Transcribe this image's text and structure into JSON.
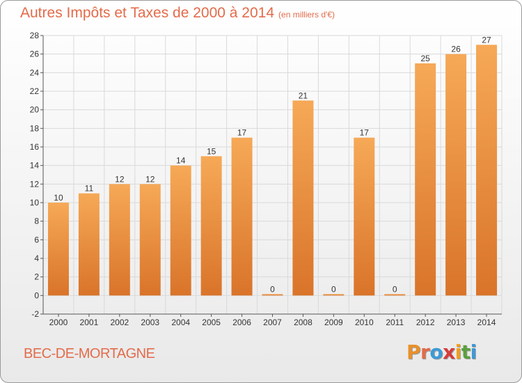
{
  "header": {
    "title": "Autres Impôts et Taxes de 2000 à 2014",
    "unit": "(en milliers d'€)"
  },
  "footer": {
    "commune": "BEC-DE-MORTAGNE",
    "logo": [
      "P",
      "r",
      "o",
      "x",
      "i",
      "t",
      "i"
    ],
    "logo_colors": [
      "#e8902a",
      "#e36b4a",
      "#3c9ad6",
      "#d63c3c",
      "#f0a020",
      "#5aa03c",
      "#3c9ad6"
    ]
  },
  "colors": {
    "bar_light": "#f6a957",
    "bar_dark": "#d9742a",
    "grid": "#d9d9d9"
  },
  "chart_data": {
    "type": "bar",
    "title": "Autres Impôts et Taxes de 2000 à 2014",
    "xlabel": "",
    "ylabel": "",
    "ylim": [
      -2,
      28
    ],
    "ystep": 2,
    "grid": true,
    "categories": [
      "2000",
      "2001",
      "2002",
      "2003",
      "2004",
      "2005",
      "2006",
      "2007",
      "2008",
      "2009",
      "2010",
      "2011",
      "2012",
      "2013",
      "2014"
    ],
    "values": [
      10,
      11,
      12,
      12,
      14,
      15,
      17,
      0,
      21,
      0,
      17,
      0,
      25,
      26,
      27
    ]
  }
}
